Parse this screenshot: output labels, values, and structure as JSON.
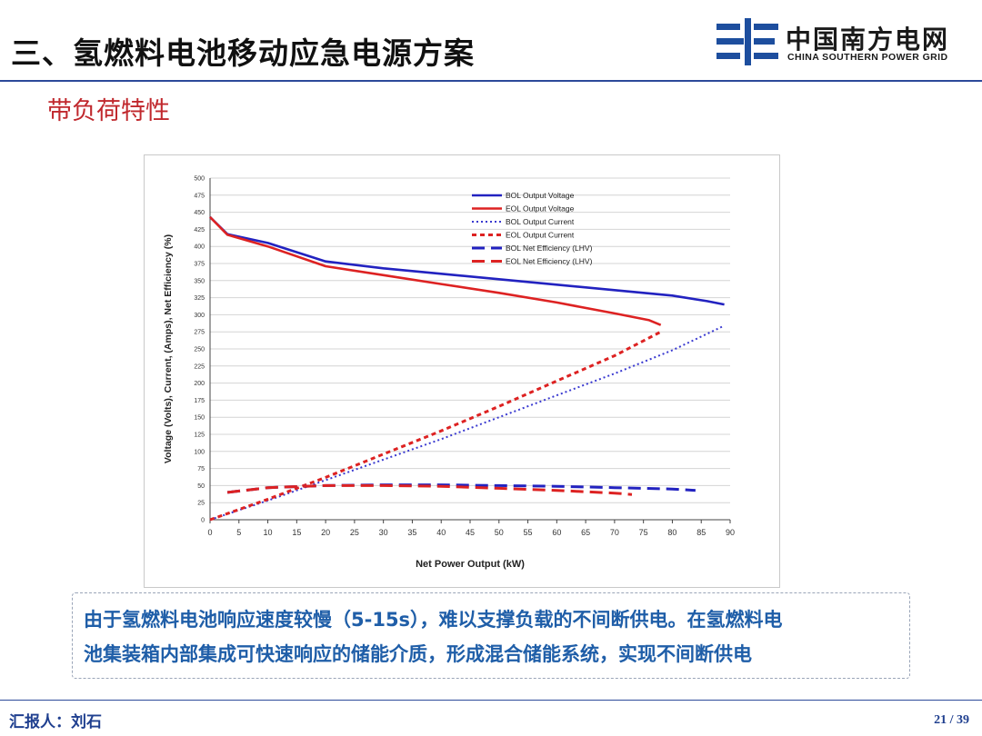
{
  "header": {
    "title": "三、氢燃料电池移动应急电源方案",
    "logo": {
      "icon": "csg-logo-icon",
      "name_cn": "中国南方电网",
      "name_en": "CHINA SOUTHERN POWER GRID",
      "color": "#1d4e9e"
    }
  },
  "subtitle": "带负荷特性",
  "chart_data": {
    "type": "line",
    "title": "",
    "xlabel": "Net Power Output (kW)",
    "ylabel": "Voltage (Volts), Current, (Amps), Net Efficiency (%)",
    "xlim": [
      0,
      90
    ],
    "ylim": [
      0,
      500
    ],
    "x_ticks": [
      "0",
      "5",
      "10",
      "15",
      "20",
      "25",
      "30",
      "35",
      "40",
      "45",
      "50",
      "55",
      "60",
      "65",
      "70",
      "75",
      "80",
      "85",
      "90"
    ],
    "y_ticks": [
      "0",
      "25",
      "50",
      "75",
      "100",
      "125",
      "150",
      "175",
      "200",
      "225",
      "250",
      "275",
      "300",
      "325",
      "350",
      "375",
      "400",
      "425",
      "450",
      "475",
      "500"
    ],
    "grid": "horizontal",
    "legend_position": "top-right",
    "series": [
      {
        "name": "BOL Output Voltage",
        "color": "#2222c0",
        "style": "solid",
        "x": [
          0,
          3,
          10,
          20,
          30,
          40,
          50,
          60,
          70,
          80,
          86,
          89
        ],
        "y": [
          443,
          418,
          405,
          378,
          368,
          360,
          352,
          344,
          336,
          328,
          320,
          315
        ]
      },
      {
        "name": "EOL Output Voltage",
        "color": "#dd2222",
        "style": "solid",
        "x": [
          0,
          3,
          10,
          20,
          30,
          40,
          50,
          60,
          70,
          76,
          78
        ],
        "y": [
          443,
          417,
          400,
          371,
          358,
          345,
          332,
          318,
          302,
          292,
          285
        ]
      },
      {
        "name": "BOL Output Current",
        "color": "#3a3ad0",
        "style": "dotted",
        "x": [
          0,
          10,
          20,
          30,
          40,
          50,
          60,
          70,
          80,
          89
        ],
        "y": [
          0,
          28,
          58,
          88,
          118,
          150,
          182,
          214,
          248,
          284
        ]
      },
      {
        "name": "EOL Output Current",
        "color": "#dd2222",
        "style": "dashed-short",
        "x": [
          0,
          10,
          20,
          30,
          40,
          50,
          60,
          70,
          78
        ],
        "y": [
          0,
          30,
          62,
          96,
          130,
          166,
          203,
          240,
          275
        ]
      },
      {
        "name": "BOL Net Efficiency (LHV)",
        "color": "#2222c0",
        "style": "dashed-long",
        "x": [
          3,
          10,
          20,
          30,
          40,
          50,
          60,
          70,
          80,
          84
        ],
        "y": [
          40,
          47,
          50,
          51,
          51,
          50,
          49,
          47,
          45,
          43
        ]
      },
      {
        "name": "EOL Net Efficiency (LHV)",
        "color": "#dd2222",
        "style": "dashed-long",
        "x": [
          3,
          10,
          20,
          30,
          40,
          50,
          60,
          70,
          73
        ],
        "y": [
          40,
          47,
          50,
          50,
          49,
          46,
          43,
          39,
          37
        ]
      }
    ]
  },
  "description": {
    "line1": "由于氢燃料电池响应速度较慢（5-15s），难以支撑负载的不间断供电。在氢燃料电",
    "line2": "池集装箱内部集成可快速响应的储能介质，形成混合储能系统，实现不间断供电"
  },
  "footer": {
    "reporter": "汇报人：刘石",
    "page": "21 / 39"
  }
}
